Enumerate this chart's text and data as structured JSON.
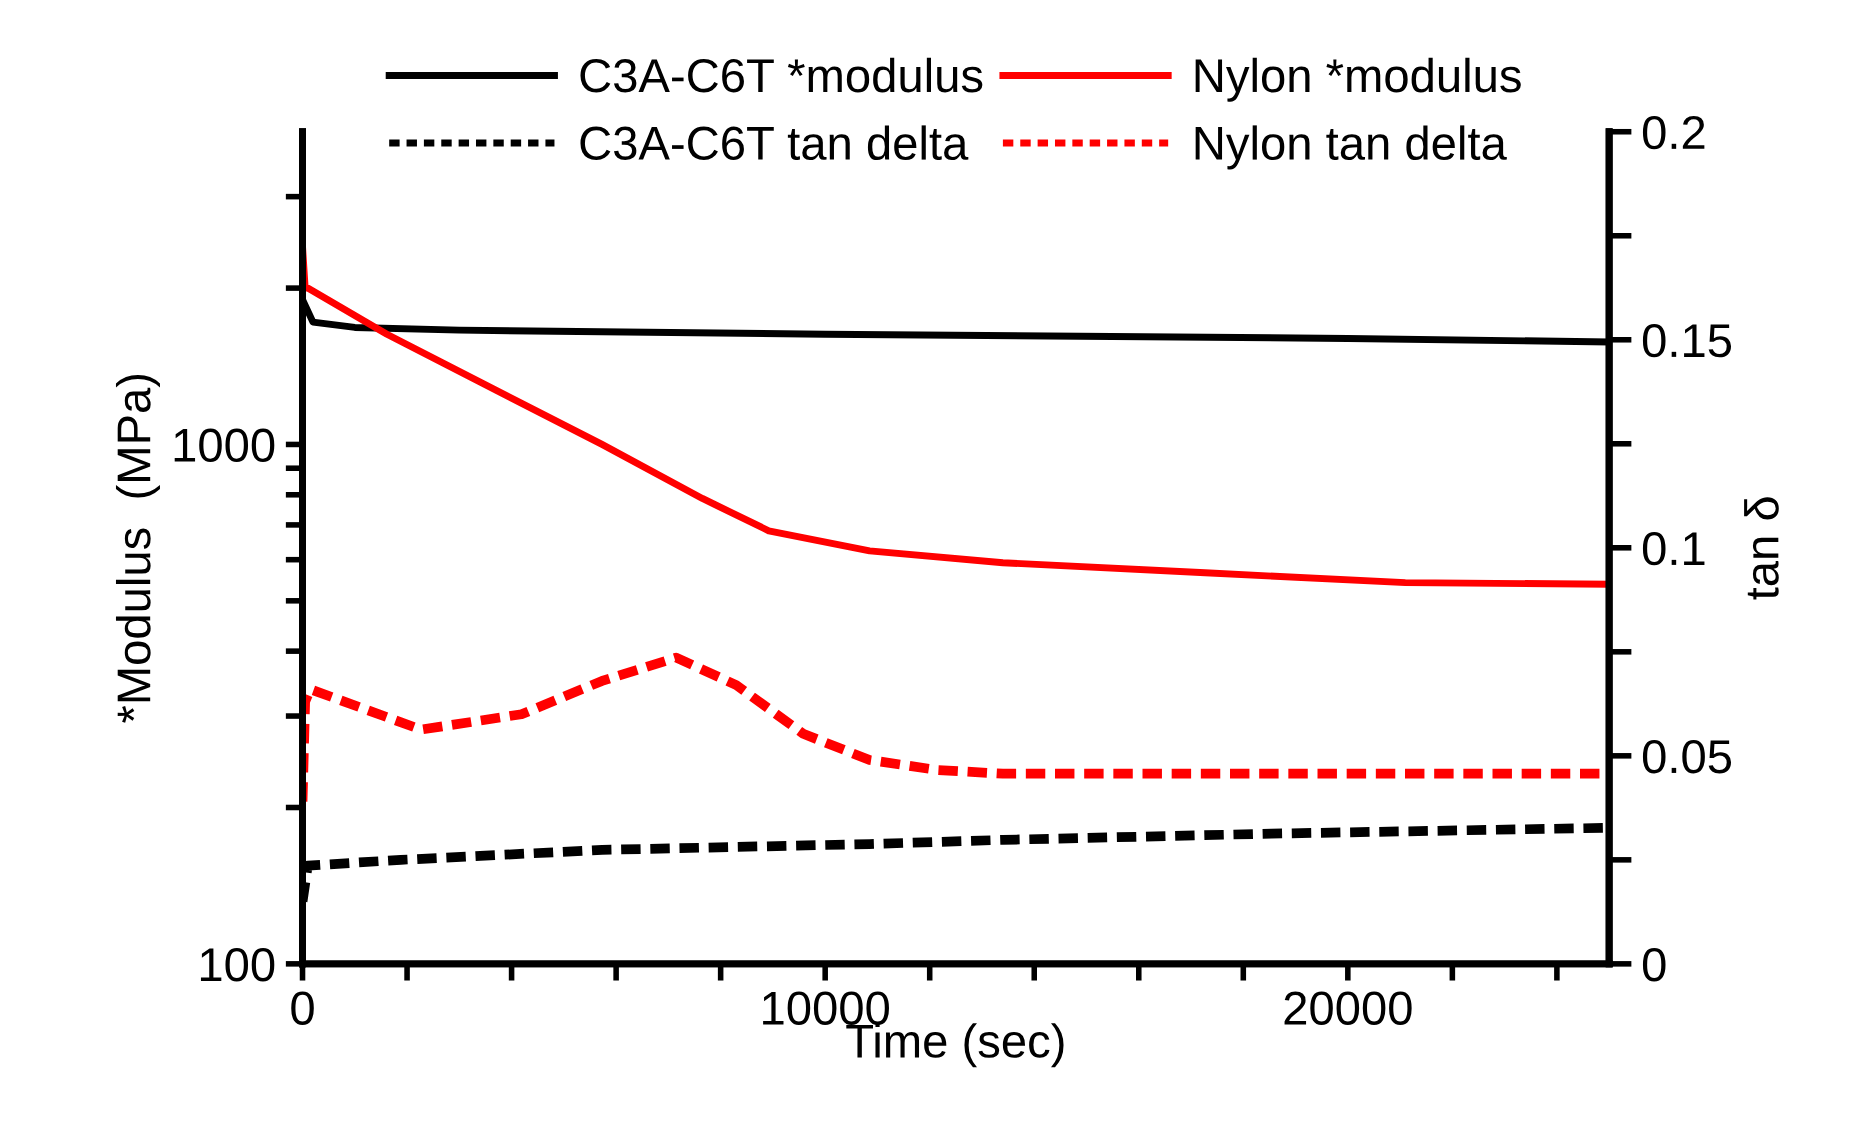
{
  "chart_data": {
    "type": "line",
    "xlabel": "Time (sec)",
    "ylabel": "*Modulus  (MPa)",
    "y2label": "tan δ",
    "log": "y",
    "legend": "top",
    "grid": false,
    "marker": "none",
    "xlim": [
      0,
      25000
    ],
    "xticks": [
      0,
      {
        "value": 2000,
        "label": null
      },
      {
        "value": 4000,
        "label": null
      },
      {
        "value": 6000,
        "label": null
      },
      {
        "value": 8000,
        "label": null
      },
      10000,
      {
        "value": 12000,
        "label": null
      },
      {
        "value": 14000,
        "label": null
      },
      {
        "value": 16000,
        "label": null
      },
      {
        "value": 18000,
        "label": null
      },
      20000,
      {
        "value": 22000,
        "label": null
      },
      {
        "value": 24000,
        "label": null
      }
    ],
    "ylim": [
      100,
      4000
    ],
    "yticks": [
      100,
      {
        "value": 200,
        "label": null
      },
      {
        "value": 300,
        "label": null
      },
      {
        "value": 400,
        "label": null
      },
      {
        "value": 500,
        "label": null
      },
      {
        "value": 600,
        "label": null
      },
      {
        "value": 700,
        "label": null
      },
      {
        "value": 800,
        "label": null
      },
      {
        "value": 900,
        "label": null
      },
      1000,
      {
        "value": 2000,
        "label": null
      },
      {
        "value": 3000,
        "label": null
      }
    ],
    "y2lim": [
      0,
      0.2
    ],
    "y2ticks": [
      0,
      {
        "value": 0.025,
        "label": null
      },
      0.05,
      {
        "value": 0.075,
        "label": null
      },
      0.1,
      {
        "value": 0.125,
        "label": null
      },
      0.15,
      {
        "value": 0.175,
        "label": null
      },
      0.2
    ],
    "series": [
      {
        "name": "C3A-C6T *modulus",
        "color": "#000000",
        "line_style": "solid",
        "x": [
          0,
          200,
          1000,
          3000,
          10000,
          20000,
          25000
        ],
        "values": [
          1900,
          1720,
          1680,
          1660,
          1630,
          1600,
          1575
        ]
      },
      {
        "name": "C3A-C6T tan delta",
        "color": "#000000",
        "line_style": "dashed",
        "axis": "y2",
        "x": [
          0,
          100,
          1880,
          5730,
          10850,
          13400,
          18540,
          25000
        ],
        "values": [
          0.015,
          0.0236,
          0.025,
          0.0274,
          0.0288,
          0.0298,
          0.0313,
          0.0327
        ]
      },
      {
        "name": "Nylon *modulus",
        "color": "#ff0000",
        "line_style": "solid",
        "x": [
          0,
          50,
          100,
          1615,
          5730,
          7650,
          8920,
          10850,
          13400,
          17270,
          21100,
          25000
        ],
        "values": [
          2400,
          2000,
          2000,
          1630,
          1000,
          787,
          682,
          624,
          592,
          566,
          542,
          538
        ]
      },
      {
        "name": "Nylon tan delta",
        "color": "#ff0000",
        "line_style": "dashed",
        "axis": "y2",
        "x": [
          0,
          50,
          150,
          2270,
          4190,
          5730,
          7150,
          8300,
          9580,
          10850,
          12150,
          13400,
          20000,
          25000
        ],
        "values": [
          0.039,
          0.063,
          0.066,
          0.0563,
          0.06,
          0.068,
          0.0736,
          0.067,
          0.0553,
          0.049,
          0.0466,
          0.0457,
          0.0457,
          0.0457
        ]
      }
    ]
  }
}
